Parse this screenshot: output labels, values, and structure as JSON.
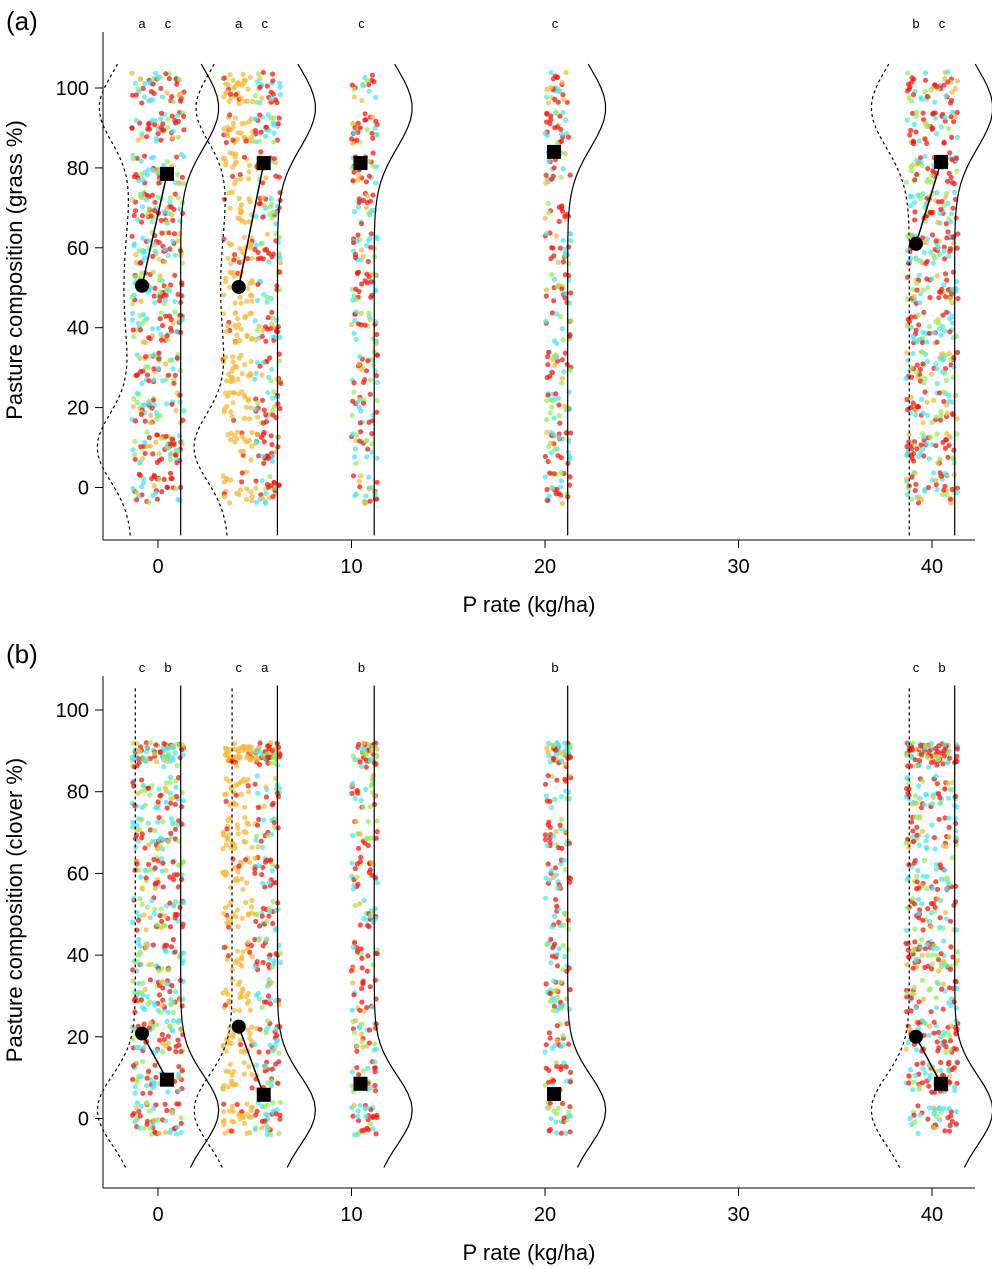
{
  "chart_data": [
    {
      "type": "scatter",
      "panel_label": "(a)",
      "xlabel": "P rate (kg/ha)",
      "ylabel": "Pasture composition (grass %)",
      "xlim": [
        -3.2,
        41.5
      ],
      "ylim": [
        -12,
        115
      ],
      "xticks": [
        0,
        10,
        20,
        30,
        40
      ],
      "yticks": [
        0,
        20,
        40,
        60,
        80,
        100
      ],
      "groups": [
        {
          "p_rate": 0,
          "has_control": true,
          "letter_control": "a",
          "letter_treated": "c",
          "control_mean": 50.5,
          "treated_mean": 78.5,
          "control_density": "bimodal",
          "treated_density": "high"
        },
        {
          "p_rate": 5,
          "has_control": true,
          "letter_control": "a",
          "letter_treated": "c",
          "control_mean": 50.2,
          "treated_mean": 81.2,
          "control_density": "bimodal",
          "treated_density": "high"
        },
        {
          "p_rate": 10,
          "has_control": false,
          "letter_treated": "c",
          "treated_mean": 81.2,
          "treated_density": "high"
        },
        {
          "p_rate": 20,
          "has_control": false,
          "letter_treated": "c",
          "treated_mean": 84.0,
          "treated_density": "high"
        },
        {
          "p_rate": 40,
          "has_control": true,
          "letter_control": "b",
          "letter_treated": "c",
          "control_mean": 61.0,
          "treated_mean": 81.5,
          "control_density": "high",
          "treated_density": "high"
        }
      ]
    },
    {
      "type": "scatter",
      "panel_label": "(b)",
      "xlabel": "P rate (kg/ha)",
      "ylabel": "Pasture composition (clover %)",
      "xlim": [
        -3.2,
        41.5
      ],
      "ylim": [
        -12,
        108
      ],
      "xticks": [
        0,
        10,
        20,
        30,
        40
      ],
      "yticks": [
        0,
        20,
        40,
        60,
        80,
        100
      ],
      "groups": [
        {
          "p_rate": 0,
          "has_control": true,
          "letter_control": "c",
          "letter_treated": "b",
          "control_mean": 20.8,
          "treated_mean": 9.5,
          "control_density": "low",
          "treated_density": "low"
        },
        {
          "p_rate": 5,
          "has_control": true,
          "letter_control": "c",
          "letter_treated": "a",
          "control_mean": 22.5,
          "treated_mean": 5.8,
          "control_density": "low",
          "treated_density": "low"
        },
        {
          "p_rate": 10,
          "has_control": false,
          "letter_treated": "b",
          "treated_mean": 8.5,
          "treated_density": "low"
        },
        {
          "p_rate": 20,
          "has_control": false,
          "letter_treated": "b",
          "treated_mean": 6.0,
          "treated_density": "low"
        },
        {
          "p_rate": 40,
          "has_control": true,
          "letter_control": "c",
          "letter_treated": "b",
          "control_mean": 20.0,
          "treated_mean": 8.5,
          "control_density": "low",
          "treated_density": "low"
        }
      ]
    }
  ],
  "colors": {
    "point_red": "#f01e14",
    "point_cyan": "#4ee6ee",
    "point_green": "#96ee5a",
    "point_orange": "#f5b93c",
    "axis": "#000000"
  }
}
